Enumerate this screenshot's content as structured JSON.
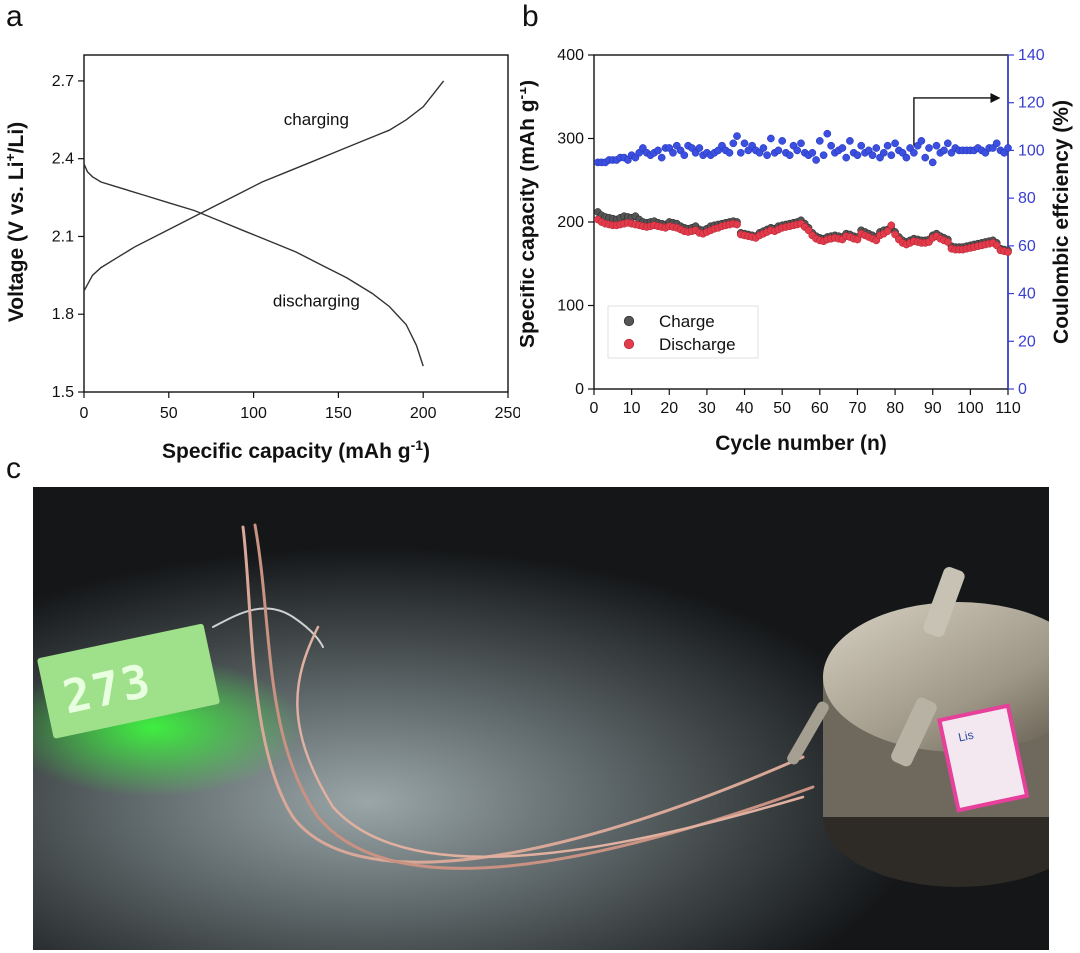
{
  "panels": {
    "a": "a",
    "b": "b",
    "c": "c"
  },
  "chart_data": [
    {
      "type": "line",
      "xlabel": "Specific capacity (mAh g",
      "xlabel_sup": "-1",
      "xlabel_end": ")",
      "ylabel_parts": [
        "Voltage (V vs. Li",
        "+",
        "/Li)"
      ],
      "xlim": [
        0,
        250
      ],
      "ylim": [
        1.5,
        2.8
      ],
      "xticks": [
        0,
        50,
        100,
        150,
        200,
        250
      ],
      "yticks": [
        1.5,
        1.8,
        2.1,
        2.4,
        2.7
      ],
      "ytick_labels": [
        "1.5",
        "1.8",
        "2.1",
        "2.4",
        "2.7"
      ],
      "series": [
        {
          "name": "charging",
          "x": [
            0,
            5,
            10,
            20,
            30,
            45,
            60,
            75,
            90,
            105,
            120,
            135,
            150,
            165,
            180,
            190,
            200,
            206,
            212
          ],
          "y": [
            1.89,
            1.95,
            1.98,
            2.02,
            2.06,
            2.11,
            2.16,
            2.21,
            2.26,
            2.31,
            2.35,
            2.39,
            2.43,
            2.47,
            2.51,
            2.55,
            2.6,
            2.65,
            2.7
          ]
        },
        {
          "name": "discharging",
          "x": [
            0,
            2,
            5,
            10,
            20,
            35,
            50,
            65,
            80,
            95,
            110,
            125,
            140,
            155,
            170,
            180,
            190,
            196,
            200
          ],
          "y": [
            2.38,
            2.35,
            2.33,
            2.31,
            2.29,
            2.26,
            2.23,
            2.2,
            2.16,
            2.12,
            2.08,
            2.04,
            1.99,
            1.94,
            1.88,
            1.83,
            1.76,
            1.68,
            1.6
          ]
        }
      ],
      "annotations": [
        {
          "text": "charging",
          "x": 137,
          "y": 2.53
        },
        {
          "text": "discharging",
          "x": 137,
          "y": 1.83
        }
      ],
      "line_color": "#333333"
    },
    {
      "type": "scatter",
      "xlabel": "Cycle number (n)",
      "ylabel_left_parts": [
        "Specific capacity (mAh g",
        "-1",
        ")"
      ],
      "ylabel_right": "Coulombic effciency (%)",
      "xlim": [
        0,
        110
      ],
      "ylim_left": [
        0,
        400
      ],
      "ylim_right": [
        0,
        140
      ],
      "xticks": [
        0,
        10,
        20,
        30,
        40,
        50,
        60,
        70,
        80,
        90,
        100,
        110
      ],
      "yticks_left": [
        0,
        100,
        200,
        300,
        400
      ],
      "yticks_right": [
        0,
        20,
        40,
        60,
        80,
        100,
        120,
        140
      ],
      "legend_position": "lower-left",
      "arrow_annotation": {
        "from": [
          85,
          102
        ],
        "to": [
          108,
          122
        ],
        "axis": "right"
      },
      "series": [
        {
          "name": "Charge",
          "axis": "left",
          "color": "#555555",
          "x": [
            1,
            2,
            3,
            4,
            5,
            6,
            7,
            8,
            9,
            10,
            11,
            12,
            13,
            14,
            15,
            16,
            17,
            18,
            19,
            20,
            21,
            22,
            23,
            24,
            25,
            26,
            27,
            28,
            29,
            30,
            31,
            32,
            33,
            34,
            35,
            36,
            37,
            38,
            39,
            40,
            41,
            42,
            43,
            44,
            45,
            46,
            47,
            48,
            49,
            50,
            51,
            52,
            53,
            54,
            55,
            56,
            57,
            58,
            59,
            60,
            61,
            62,
            63,
            64,
            65,
            66,
            67,
            68,
            69,
            70,
            71,
            72,
            73,
            74,
            75,
            76,
            77,
            78,
            79,
            80,
            81,
            82,
            83,
            84,
            85,
            86,
            87,
            88,
            89,
            90,
            91,
            92,
            93,
            94,
            95,
            96,
            97,
            98,
            99,
            100,
            101,
            102,
            103,
            104,
            105,
            106,
            107,
            108,
            109,
            110
          ],
          "y": [
            212,
            208,
            206,
            205,
            204,
            203,
            205,
            207,
            206,
            205,
            207,
            203,
            200,
            199,
            200,
            201,
            199,
            198,
            197,
            200,
            199,
            198,
            195,
            193,
            192,
            193,
            195,
            191,
            190,
            192,
            195,
            196,
            197,
            198,
            199,
            200,
            201,
            200,
            187,
            186,
            185,
            184,
            183,
            187,
            189,
            191,
            193,
            192,
            195,
            196,
            197,
            198,
            199,
            200,
            202,
            198,
            193,
            187,
            183,
            181,
            180,
            182,
            183,
            184,
            183,
            182,
            186,
            185,
            183,
            182,
            190,
            188,
            186,
            184,
            182,
            188,
            190,
            191,
            192,
            188,
            182,
            178,
            176,
            178,
            180,
            179,
            178,
            178,
            179,
            184,
            186,
            183,
            181,
            179,
            171,
            170,
            170,
            170,
            171,
            172,
            173,
            174,
            175,
            176,
            177,
            178,
            175,
            168,
            167,
            166
          ]
        },
        {
          "name": "Discharge",
          "axis": "left",
          "color": "#e23b4b",
          "x": [
            1,
            2,
            3,
            4,
            5,
            6,
            7,
            8,
            9,
            10,
            11,
            12,
            13,
            14,
            15,
            16,
            17,
            18,
            19,
            20,
            21,
            22,
            23,
            24,
            25,
            26,
            27,
            28,
            29,
            30,
            31,
            32,
            33,
            34,
            35,
            36,
            37,
            38,
            39,
            40,
            41,
            42,
            43,
            44,
            45,
            46,
            47,
            48,
            49,
            50,
            51,
            52,
            53,
            54,
            55,
            56,
            57,
            58,
            59,
            60,
            61,
            62,
            63,
            64,
            65,
            66,
            67,
            68,
            69,
            70,
            71,
            72,
            73,
            74,
            75,
            76,
            77,
            78,
            79,
            80,
            81,
            82,
            83,
            84,
            85,
            86,
            87,
            88,
            89,
            90,
            91,
            92,
            93,
            94,
            95,
            96,
            97,
            98,
            99,
            100,
            101,
            102,
            103,
            104,
            105,
            106,
            107,
            108,
            109,
            110
          ],
          "y": [
            203,
            200,
            198,
            197,
            196,
            196,
            197,
            198,
            199,
            198,
            197,
            196,
            195,
            194,
            195,
            196,
            195,
            194,
            193,
            195,
            194,
            193,
            191,
            189,
            188,
            189,
            190,
            187,
            186,
            188,
            190,
            192,
            193,
            195,
            196,
            197,
            198,
            197,
            185,
            184,
            183,
            182,
            181,
            184,
            186,
            188,
            190,
            189,
            191,
            193,
            194,
            195,
            196,
            197,
            198,
            194,
            190,
            184,
            180,
            178,
            177,
            179,
            180,
            181,
            180,
            179,
            183,
            182,
            180,
            179,
            186,
            184,
            182,
            180,
            178,
            184,
            186,
            189,
            196,
            185,
            179,
            175,
            173,
            175,
            177,
            176,
            175,
            175,
            176,
            181,
            183,
            180,
            178,
            176,
            168,
            167,
            167,
            167,
            168,
            169,
            170,
            171,
            172,
            173,
            174,
            175,
            172,
            166,
            165,
            164
          ]
        },
        {
          "name": "Coulombic efficiency",
          "axis": "right",
          "color": "#3b4fe0",
          "x": [
            1,
            2,
            3,
            4,
            5,
            6,
            7,
            8,
            9,
            10,
            11,
            12,
            13,
            14,
            15,
            16,
            17,
            18,
            19,
            20,
            21,
            22,
            23,
            24,
            25,
            26,
            27,
            28,
            29,
            30,
            31,
            32,
            33,
            34,
            35,
            36,
            37,
            38,
            39,
            40,
            41,
            42,
            43,
            44,
            45,
            46,
            47,
            48,
            49,
            50,
            51,
            52,
            53,
            54,
            55,
            56,
            57,
            58,
            59,
            60,
            61,
            62,
            63,
            64,
            65,
            66,
            67,
            68,
            69,
            70,
            71,
            72,
            73,
            74,
            75,
            76,
            77,
            78,
            79,
            80,
            81,
            82,
            83,
            84,
            85,
            86,
            87,
            88,
            89,
            90,
            91,
            92,
            93,
            94,
            95,
            96,
            97,
            98,
            99,
            100,
            101,
            102,
            103,
            104,
            105,
            106,
            107,
            108,
            109,
            110
          ],
          "y": [
            95,
            95,
            95,
            96,
            96,
            96,
            97,
            97,
            96,
            98,
            97,
            99,
            101,
            99,
            98,
            99,
            100,
            97,
            101,
            101,
            99,
            102,
            100,
            98,
            102,
            101,
            99,
            101,
            98,
            99,
            98,
            99,
            100,
            102,
            100,
            99,
            103,
            106,
            99,
            103,
            100,
            102,
            100,
            99,
            101,
            98,
            105,
            99,
            100,
            104,
            99,
            98,
            102,
            100,
            103,
            99,
            98,
            99,
            96,
            104,
            98,
            107,
            102,
            99,
            100,
            101,
            97,
            104,
            99,
            98,
            102,
            99,
            100,
            98,
            101,
            97,
            99,
            102,
            98,
            103,
            100,
            99,
            97,
            101,
            99,
            102,
            104,
            97,
            101,
            95,
            102,
            99,
            100,
            103,
            99,
            101,
            100,
            100,
            100,
            100,
            100,
            101,
            100,
            99,
            101,
            101,
            103,
            100,
            99,
            101
          ]
        }
      ]
    }
  ],
  "photo": {
    "counter_text": "273",
    "label_text": "Lis"
  },
  "colors": {
    "axis_right": "#3a3fd0",
    "led_green": "#5dff5d"
  }
}
